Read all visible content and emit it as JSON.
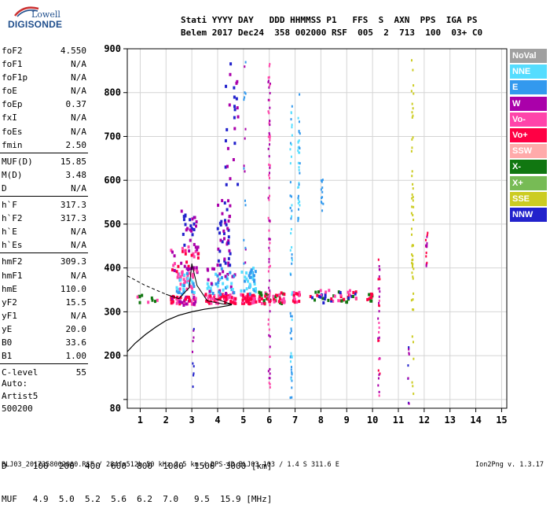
{
  "logo": {
    "line1": "Lowell",
    "line2": "DIGISONDE"
  },
  "header": {
    "line1": "Stati YYYY DAY   DDD HHMMSS P1   FFS  S  AXN  PPS  IGA PS",
    "line2": "Belem 2017 Dec24  358 002000 RSF  005  2  713  100  03+ C0"
  },
  "params": [
    [
      {
        "label": "foF2",
        "value": "4.550"
      },
      {
        "label": "foF1",
        "value": "N/A"
      },
      {
        "label": "foF1p",
        "value": "N/A"
      },
      {
        "label": "foE",
        "value": "N/A"
      },
      {
        "label": "foEp",
        "value": "0.37"
      },
      {
        "label": "fxI",
        "value": "N/A"
      },
      {
        "label": "foEs",
        "value": "N/A"
      },
      {
        "label": "fmin",
        "value": "2.50"
      }
    ],
    [
      {
        "label": "MUF(D)",
        "value": "15.85"
      },
      {
        "label": "M(D)",
        "value": "3.48"
      },
      {
        "label": "D",
        "value": "N/A"
      }
    ],
    [
      {
        "label": "h`F",
        "value": "317.3"
      },
      {
        "label": "h`F2",
        "value": "317.3"
      },
      {
        "label": "h`E",
        "value": "N/A"
      },
      {
        "label": "h`Es",
        "value": "N/A"
      }
    ],
    [
      {
        "label": "hmF2",
        "value": "309.3"
      },
      {
        "label": "hmF1",
        "value": "N/A"
      },
      {
        "label": "hmE",
        "value": "110.0"
      },
      {
        "label": "yF2",
        "value": "15.5"
      },
      {
        "label": "yF1",
        "value": "N/A"
      },
      {
        "label": "yE",
        "value": "20.0"
      },
      {
        "label": "B0",
        "value": "33.6"
      },
      {
        "label": "B1",
        "value": "1.00"
      }
    ],
    [
      {
        "label": "C-level",
        "value": "55"
      }
    ]
  ],
  "artist": {
    "line1": "Auto:",
    "line2": "Artist5",
    "line3": "500200"
  },
  "legend": [
    {
      "label": "NoVal",
      "color": "#a0a0a0"
    },
    {
      "label": "NNE",
      "color": "#55ddff"
    },
    {
      "label": "E",
      "color": "#3399ee"
    },
    {
      "label": "W",
      "color": "#aa00aa"
    },
    {
      "label": "Vo-",
      "color": "#ff44aa"
    },
    {
      "label": "Vo+",
      "color": "#ff0044"
    },
    {
      "label": "SSW",
      "color": "#ffaaaa"
    },
    {
      "label": "X-",
      "color": "#117711"
    },
    {
      "label": "X+",
      "color": "#77bb55"
    },
    {
      "label": "SSE",
      "color": "#cccc22"
    },
    {
      "label": "NNW",
      "color": "#2222cc"
    }
  ],
  "mufTable": {
    "line1": "D     100  200  400  600  800  1000  1500  3000 [km]",
    "line2": "MUF   4.9  5.0  5.2  5.6  6.2  7.0   9.5  15.9 [MHz]"
  },
  "footer": {
    "left": "BLJ03_2017358002000.RSF / 284fx512h 50 kHz 2.5 km / DPS-4D BLJ03 103 / 1.4 S 311.6 E",
    "right": "Ion2Png v. 1.3.17"
  },
  "chart_data": {
    "type": "scatter",
    "title": "",
    "xlabel": "",
    "ylabel": "",
    "xlim": [
      0.5,
      15.2
    ],
    "ylim": [
      80,
      900
    ],
    "xticks": [
      1,
      2,
      3,
      4,
      5,
      6,
      7,
      8,
      9,
      10,
      11,
      12,
      13,
      14,
      15
    ],
    "yticks": [
      100,
      200,
      300,
      400,
      500,
      600,
      700,
      800,
      900
    ],
    "ytick_labels": [
      "",
      "200",
      "300",
      "400",
      "500",
      "600",
      "700",
      "800",
      "900"
    ],
    "extra_ytick_label": {
      "value": 80,
      "label": "80"
    },
    "grid": true,
    "profile_curve": {
      "x": [
        0.5,
        0.8,
        1.2,
        1.6,
        2.0,
        2.5,
        3.0,
        3.5,
        4.0,
        4.4,
        4.55
      ],
      "y": [
        209,
        228,
        248,
        265,
        280,
        292,
        300,
        306,
        310,
        314,
        316
      ]
    },
    "trace_polyline": {
      "x": [
        0.5,
        1.2,
        2.0,
        2.5,
        2.9,
        3.0,
        3.2,
        3.6,
        4.2,
        4.55,
        3.9
      ],
      "y": [
        382,
        360,
        340,
        330,
        355,
        410,
        360,
        325,
        318,
        317,
        330
      ]
    },
    "echo_clusters": [
      {
        "x": [
          2.2,
          3.2
        ],
        "y": [
          315,
          335
        ],
        "n": 50,
        "colors": [
          "#ff0044",
          "#ff44aa",
          "#aa00aa"
        ]
      },
      {
        "x": [
          2.4,
          3.1
        ],
        "y": [
          340,
          390
        ],
        "n": 55,
        "colors": [
          "#3399ee",
          "#55ddff",
          "#ff44aa"
        ]
      },
      {
        "x": [
          2.2,
          3.3
        ],
        "y": [
          390,
          450
        ],
        "n": 40,
        "colors": [
          "#aa00aa",
          "#ff0044",
          "#ff44aa"
        ]
      },
      {
        "x": [
          2.6,
          3.2
        ],
        "y": [
          450,
          530
        ],
        "n": 25,
        "colors": [
          "#aa00aa",
          "#2222cc"
        ]
      },
      {
        "x": [
          3.5,
          4.7
        ],
        "y": [
          318,
          340
        ],
        "n": 60,
        "colors": [
          "#ff0044",
          "#ff44aa"
        ]
      },
      {
        "x": [
          3.6,
          4.7
        ],
        "y": [
          340,
          400
        ],
        "n": 50,
        "colors": [
          "#3399ee",
          "#55ddff",
          "#aa00aa"
        ]
      },
      {
        "x": [
          4.0,
          4.5
        ],
        "y": [
          400,
          560
        ],
        "n": 45,
        "colors": [
          "#2222cc",
          "#aa00aa"
        ]
      },
      {
        "x": [
          4.3,
          4.8
        ],
        "y": [
          560,
          870
        ],
        "n": 25,
        "colors": [
          "#2222cc",
          "#aa00aa"
        ]
      },
      {
        "x": [
          4.9,
          5.5
        ],
        "y": [
          318,
          340
        ],
        "n": 45,
        "colors": [
          "#ff0044",
          "#ff44aa"
        ]
      },
      {
        "x": [
          4.9,
          5.5
        ],
        "y": [
          340,
          400
        ],
        "n": 35,
        "colors": [
          "#3399ee",
          "#55ddff"
        ]
      },
      {
        "x": [
          5.6,
          6.6
        ],
        "y": [
          318,
          345
        ],
        "n": 50,
        "colors": [
          "#ff0044",
          "#ff44aa",
          "#117711"
        ]
      },
      {
        "x": [
          6.9,
          7.2
        ],
        "y": [
          320,
          345
        ],
        "n": 20,
        "colors": [
          "#ff0044",
          "#ff44aa"
        ]
      },
      {
        "x": [
          7.6,
          9.4
        ],
        "y": [
          320,
          350
        ],
        "n": 50,
        "colors": [
          "#ff0044",
          "#ff44aa",
          "#117711",
          "#2222cc"
        ]
      },
      {
        "x": [
          9.6,
          10.0
        ],
        "y": [
          322,
          342
        ],
        "n": 10,
        "colors": [
          "#117711",
          "#ff0044"
        ]
      },
      {
        "x": [
          0.9,
          1.7
        ],
        "y": [
          320,
          345
        ],
        "n": 10,
        "colors": [
          "#ff44aa",
          "#117711"
        ]
      }
    ],
    "echo_columns": [
      {
        "x": 6.0,
        "y": [
          110,
          880
        ],
        "n": 80,
        "colors": [
          "#aa00aa",
          "#ff44aa"
        ]
      },
      {
        "x": 6.85,
        "y": [
          90,
          790
        ],
        "n": 60,
        "colors": [
          "#3399ee",
          "#55ddff"
        ]
      },
      {
        "x": 7.15,
        "y": [
          500,
          800
        ],
        "n": 35,
        "colors": [
          "#3399ee",
          "#55ddff"
        ]
      },
      {
        "x": 8.05,
        "y": [
          530,
          610
        ],
        "n": 12,
        "colors": [
          "#3399ee"
        ]
      },
      {
        "x": 10.25,
        "y": [
          90,
          420
        ],
        "n": 35,
        "colors": [
          "#ff0044",
          "#ff44aa",
          "#aa00aa"
        ]
      },
      {
        "x": 11.55,
        "y": [
          110,
          880
        ],
        "n": 55,
        "colors": [
          "#cccc22"
        ]
      },
      {
        "x": 12.1,
        "y": [
          400,
          480
        ],
        "n": 15,
        "colors": [
          "#ff0044",
          "#aa00aa"
        ]
      },
      {
        "x": 3.05,
        "y": [
          120,
          290
        ],
        "n": 10,
        "colors": [
          "#aa00aa",
          "#2222cc"
        ]
      },
      {
        "x": 11.4,
        "y": [
          90,
          230
        ],
        "n": 10,
        "colors": [
          "#2222cc",
          "#aa00aa"
        ]
      },
      {
        "x": 5.05,
        "y": [
          400,
          890
        ],
        "n": 18,
        "colors": [
          "#aa00aa",
          "#3399ee"
        ]
      }
    ]
  }
}
